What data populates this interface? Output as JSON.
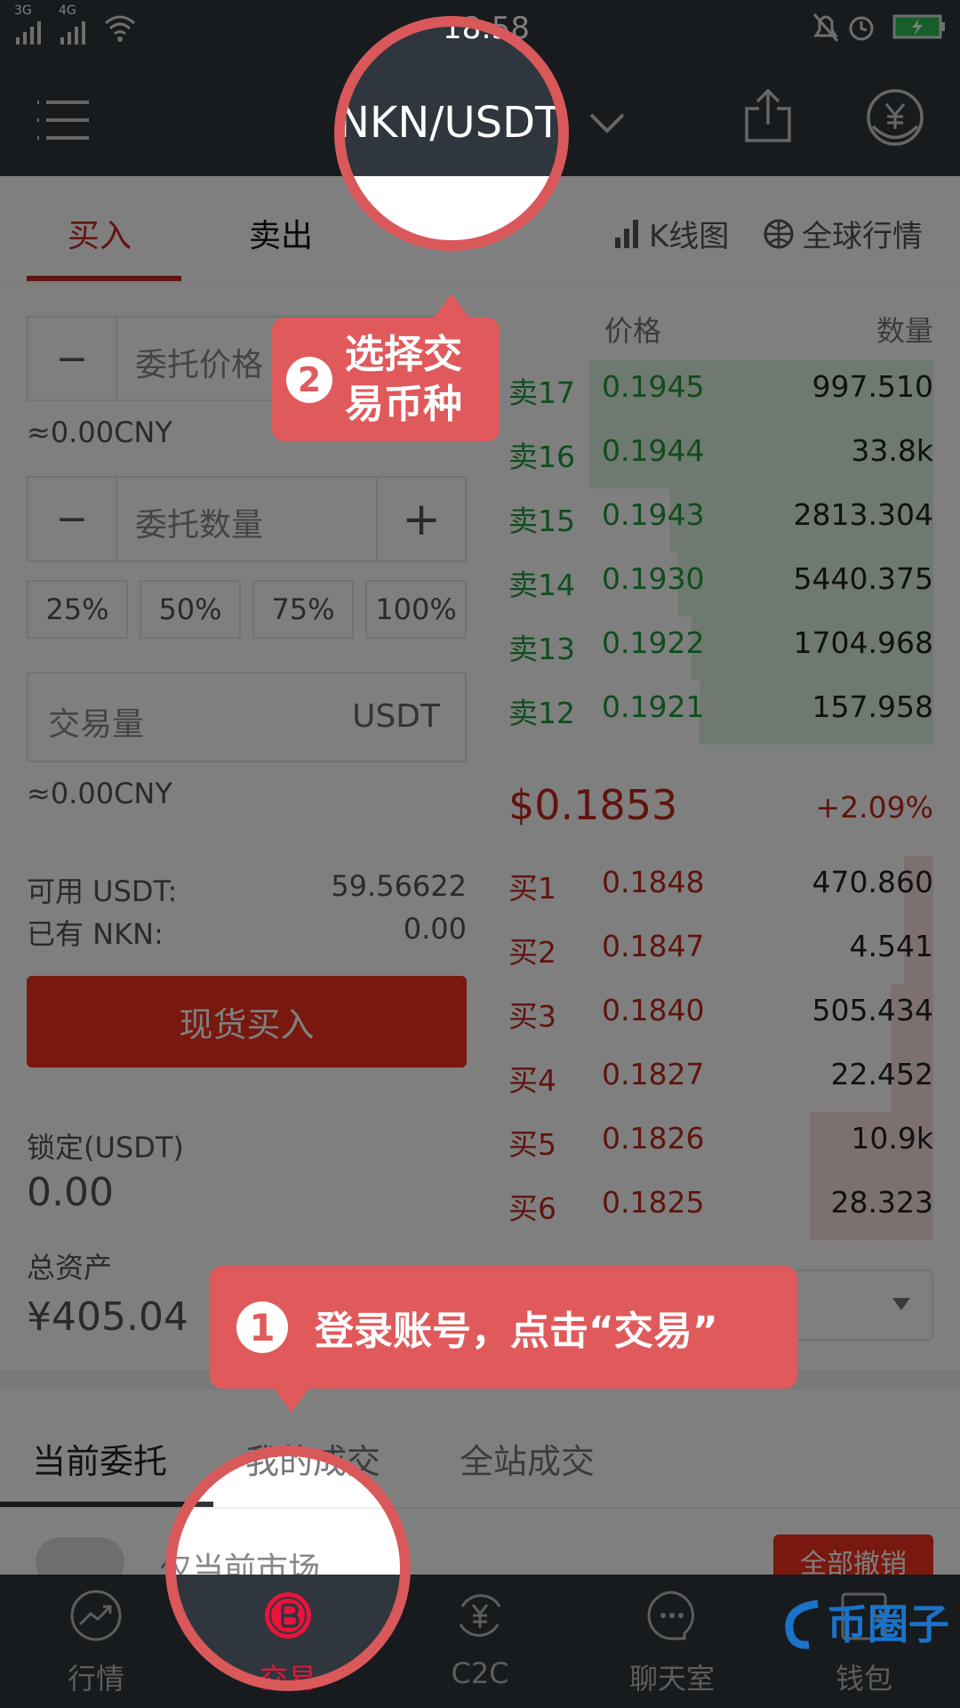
{
  "status_bar": {
    "signal_1": "3G",
    "signal_2": "4G",
    "time": "18:58"
  },
  "header": {
    "pair": "NKN/USDT",
    "icons": [
      "menu-icon",
      "chevron-down-icon",
      "share-icon",
      "yuan-coin-icon"
    ]
  },
  "trade_tabs": {
    "buy": "买入",
    "sell": "卖出",
    "kline": "K线图",
    "global": "全球行情",
    "active": "buy"
  },
  "order_form": {
    "price_placeholder": "委托价格",
    "price_cny": "≈0.00CNY",
    "qty_placeholder": "委托数量",
    "minus": "−",
    "plus": "+",
    "percents": [
      "25%",
      "50%",
      "75%",
      "100%"
    ],
    "volume_placeholder": "交易量",
    "volume_unit": "USDT",
    "volume_cny": "≈0.00CNY",
    "available_label": "可用 USDT:",
    "available_value": "59.56622",
    "held_label": "已有 NKN:",
    "held_value": "0.00",
    "submit": "现货买入",
    "locked_label": "锁定(USDT)",
    "locked_value": "0.00",
    "total_label": "总资产",
    "total_value": "¥405.04"
  },
  "order_book": {
    "price_header": "价格",
    "qty_header": "数量",
    "asks": [
      {
        "label": "卖17",
        "price": "0.1945",
        "qty": "997.510",
        "depth": 0.81
      },
      {
        "label": "卖16",
        "price": "0.1944",
        "qty": "33.8k",
        "depth": 0.81
      },
      {
        "label": "卖15",
        "price": "0.1943",
        "qty": "2813.304",
        "depth": 0.62
      },
      {
        "label": "卖14",
        "price": "0.1930",
        "qty": "5440.375",
        "depth": 0.6
      },
      {
        "label": "卖13",
        "price": "0.1922",
        "qty": "1704.968",
        "depth": 0.57
      },
      {
        "label": "卖12",
        "price": "0.1921",
        "qty": "157.958",
        "depth": 0.55
      }
    ],
    "last_price": "$0.1853",
    "change": "+2.09%",
    "bids": [
      {
        "label": "买1",
        "price": "0.1848",
        "qty": "470.860",
        "depth": 0.07
      },
      {
        "label": "买2",
        "price": "0.1847",
        "qty": "4.541",
        "depth": 0.07
      },
      {
        "label": "买3",
        "price": "0.1840",
        "qty": "505.434",
        "depth": 0.1
      },
      {
        "label": "买4",
        "price": "0.1827",
        "qty": "22.452",
        "depth": 0.1
      },
      {
        "label": "买5",
        "price": "0.1826",
        "qty": "10.9k",
        "depth": 0.29
      },
      {
        "label": "买6",
        "price": "0.1825",
        "qty": "28.323",
        "depth": 0.29
      }
    ]
  },
  "orders": {
    "tabs": [
      "当前委托",
      "我的成交",
      "全站成交"
    ],
    "filter_label": "仅当前市场",
    "cancel_all": "全部撤销"
  },
  "bottom_nav": [
    {
      "label": "行情",
      "icon": "trend-chart-icon"
    },
    {
      "label": "交易",
      "icon": "bitcoin-icon",
      "active": true
    },
    {
      "label": "C2C",
      "icon": "yuan-exchange-icon"
    },
    {
      "label": "聊天室",
      "icon": "chat-bubble-icon"
    },
    {
      "label": "钱包",
      "icon": "wallet-icon"
    }
  ],
  "guide": {
    "step1_num": "1",
    "step1_text": "登录账号，点击“交易”",
    "step2_num": "2",
    "step2_text": "选择交易币种"
  },
  "watermark": "币圈子",
  "colors": {
    "buy_red": "#c0281d",
    "sell_green": "#1f9a3a",
    "header_dark": "#2f363d",
    "guide_red": "#e05a5c",
    "overlay": "rgba(0,0,0,0.5)"
  }
}
